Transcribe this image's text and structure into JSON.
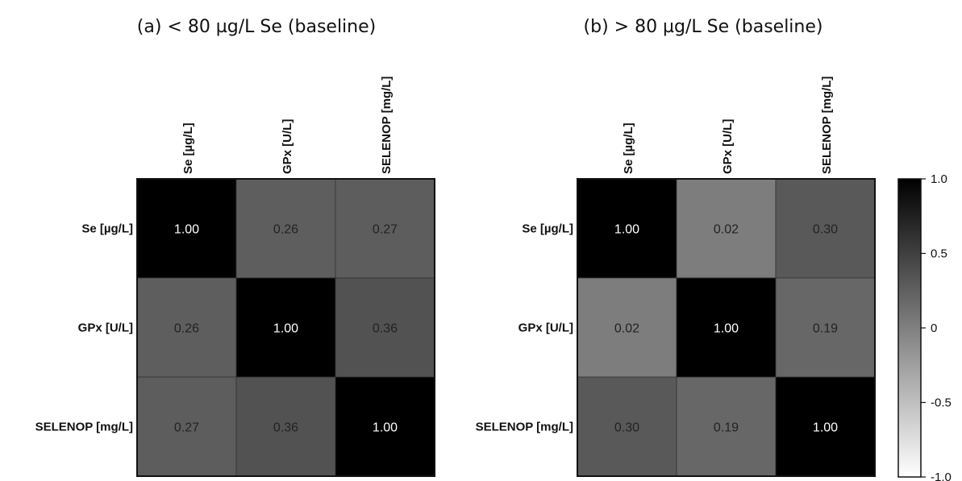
{
  "chart_data": [
    {
      "type": "heatmap",
      "title": "(a) < 80 µg/L Se (baseline)",
      "labels": [
        "Se [µg/L]",
        "GPx [U/L]",
        "SELENOP [mg/L]"
      ],
      "matrix": [
        [
          "1.00",
          "0.26",
          "0.27"
        ],
        [
          "0.26",
          "1.00",
          "0.36"
        ],
        [
          "0.27",
          "0.36",
          "1.00"
        ]
      ]
    },
    {
      "type": "heatmap",
      "title": "(b) > 80 µg/L Se (baseline)",
      "labels": [
        "Se [µg/L]",
        "GPx [U/L]",
        "SELENOP [mg/L]"
      ],
      "matrix": [
        [
          "1.00",
          "0.02",
          "0.30"
        ],
        [
          "0.02",
          "1.00",
          "0.19"
        ],
        [
          "0.30",
          "0.19",
          "1.00"
        ]
      ]
    }
  ],
  "colorbar": {
    "range": [
      -1.0,
      1.0
    ],
    "ticks": [
      "1.0",
      "0.5",
      "0",
      "-0.5",
      "-1.0"
    ],
    "tick_values": [
      1.0,
      0.5,
      0,
      -0.5,
      -1.0
    ],
    "color_low": "#ffffff",
    "color_high": "#000000"
  }
}
